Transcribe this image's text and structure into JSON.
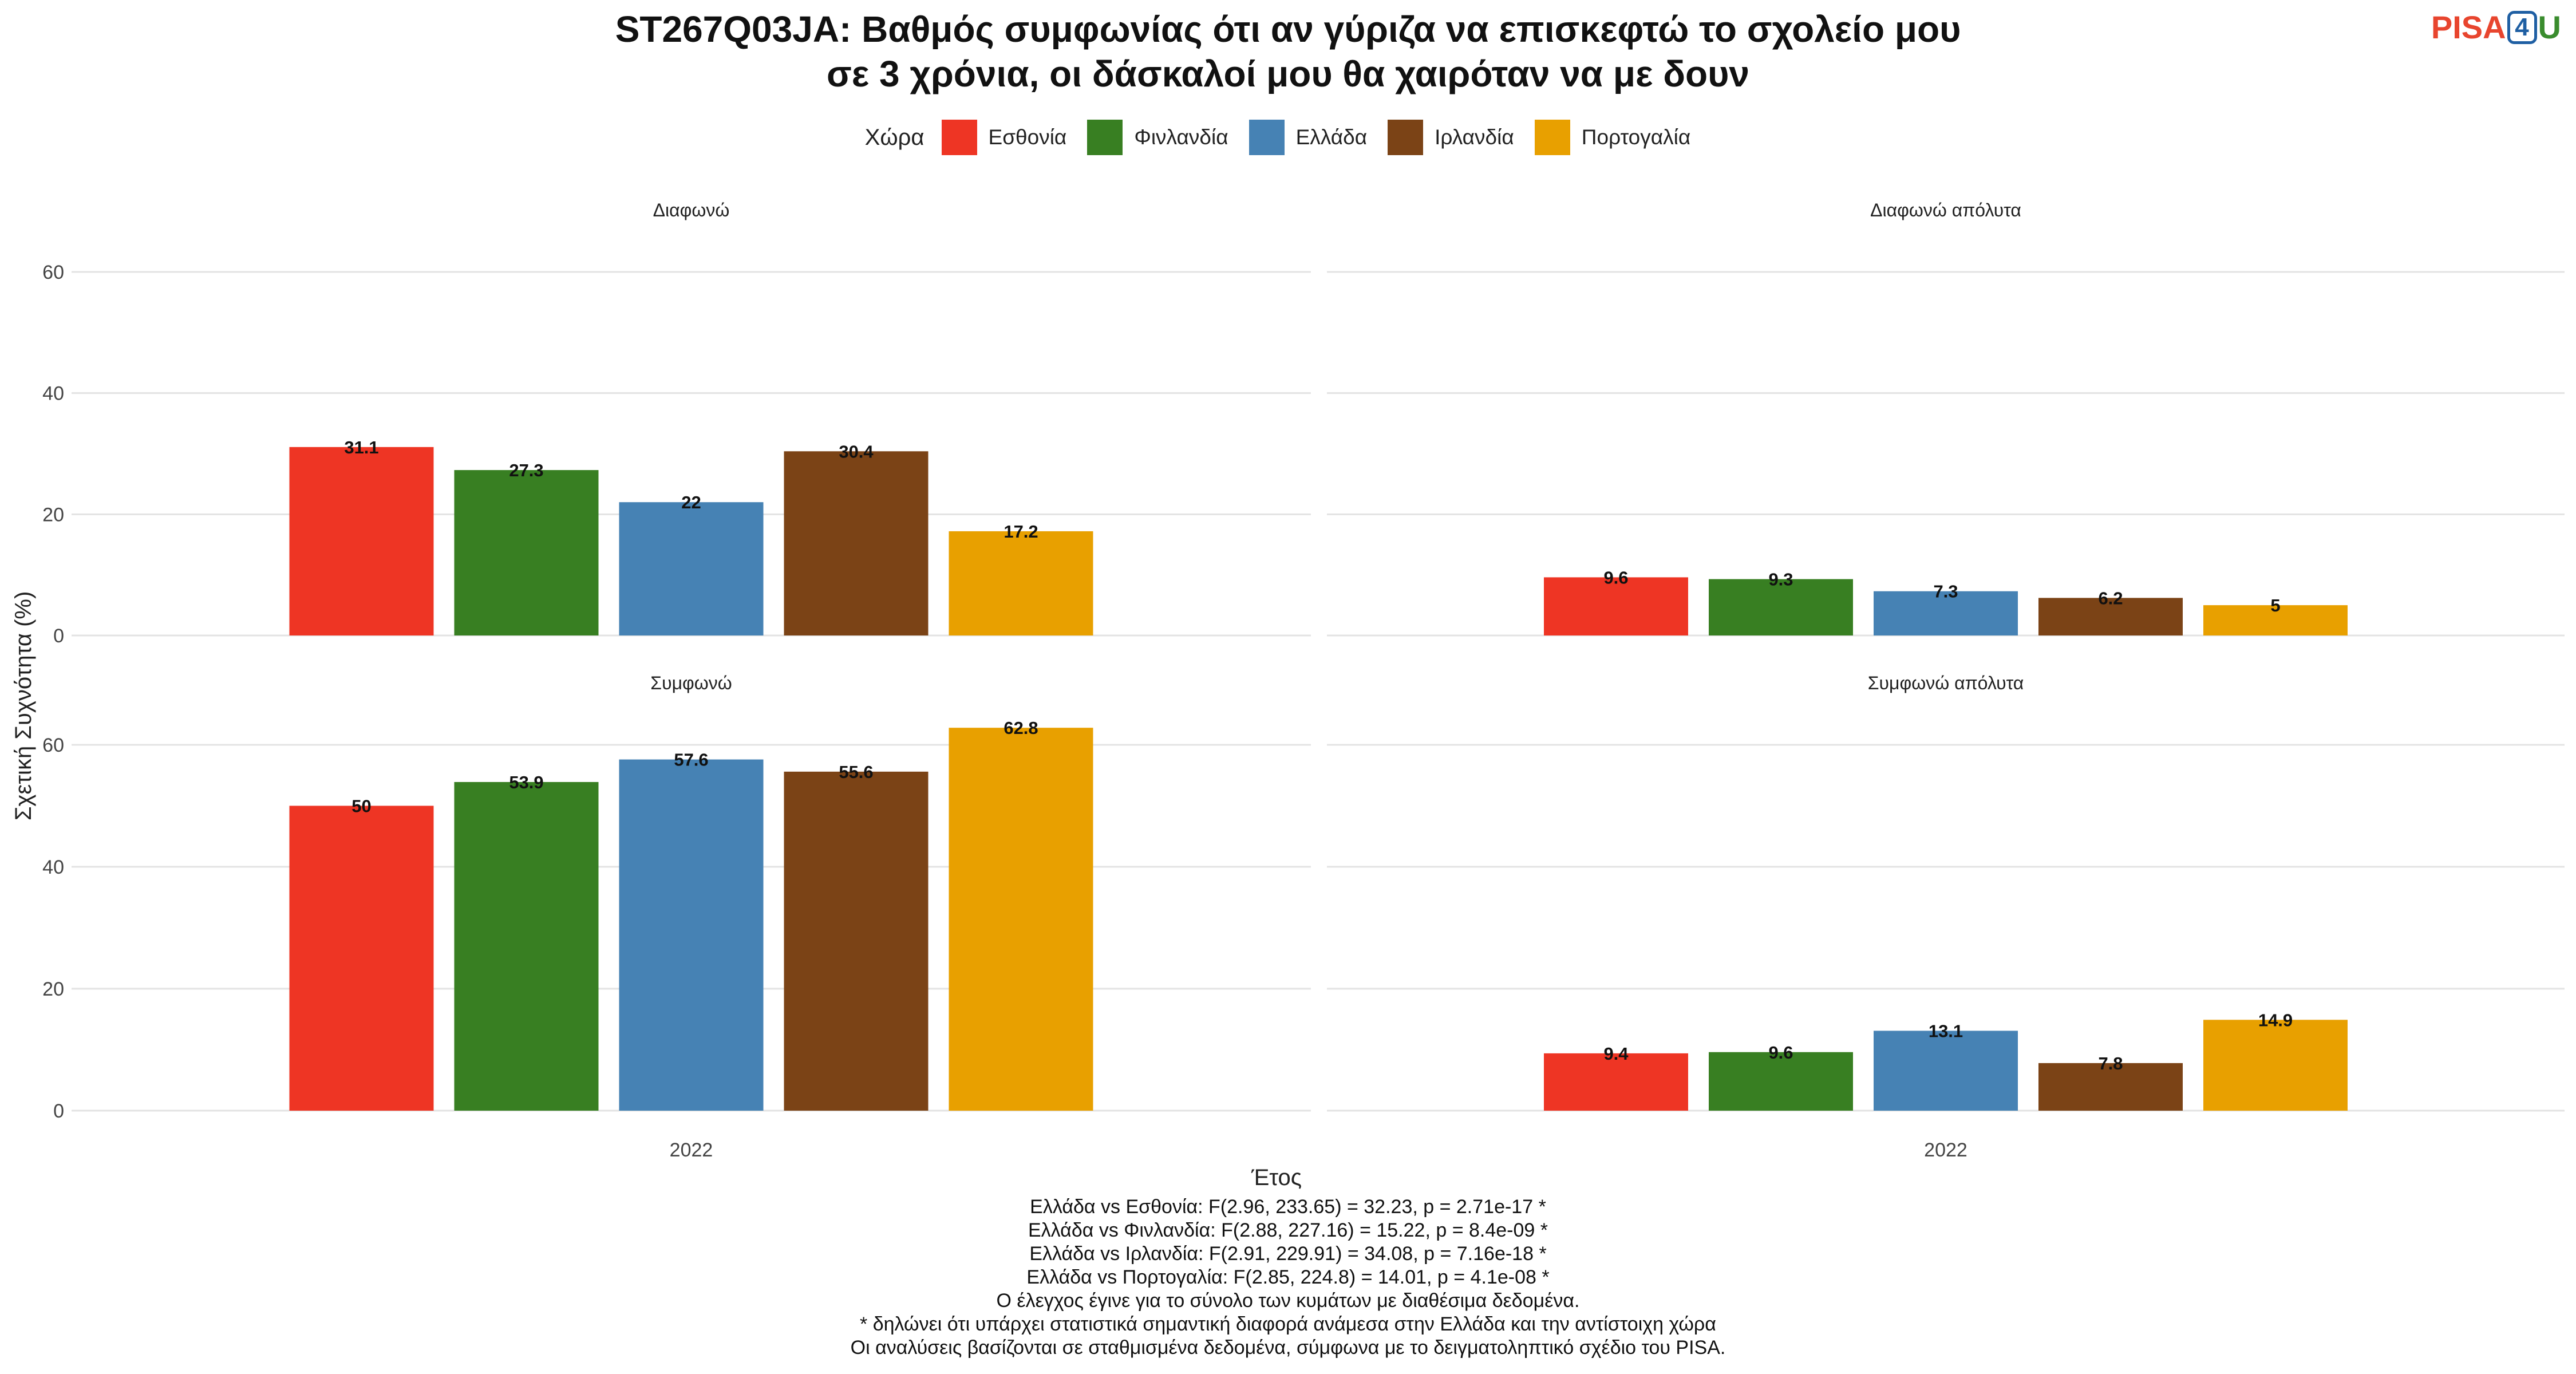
{
  "title_lines": [
    "ST267Q03JA: Βαθμός συμφωνίας ότι αν γύριζα να επισκεφτώ το σχολείο μου",
    "σε 3 χρόνια, οι δάσκαλοί μου θα χαιρόταν να με δουν"
  ],
  "logo": {
    "part1": "PISA",
    "part2": "4",
    "part3": "U"
  },
  "legend": {
    "title": "Χώρα",
    "items": [
      {
        "label": "Εσθονία",
        "color": "#EE3524"
      },
      {
        "label": "Φινλανδία",
        "color": "#387F22"
      },
      {
        "label": "Ελλάδα",
        "color": "#4682B4"
      },
      {
        "label": "Ιρλανδία",
        "color": "#7B4316"
      },
      {
        "label": "Πορτογαλία",
        "color": "#E8A000"
      }
    ]
  },
  "chart_data": {
    "type": "bar",
    "ylabel": "Σχετική Συχνότητα (%)",
    "xlabel": "Έτος",
    "ylim": [
      0,
      60
    ],
    "yticks": [
      0,
      20,
      40,
      60
    ],
    "grid": true,
    "legend_position": "top",
    "x_tick": "2022",
    "series_names": [
      "Εσθονία",
      "Φινλανδία",
      "Ελλάδα",
      "Ιρλανδία",
      "Πορτογαλία"
    ],
    "series_colors": [
      "#EE3524",
      "#387F22",
      "#4682B4",
      "#7B4316",
      "#E8A000"
    ],
    "panels": [
      {
        "title": "Διαφωνώ",
        "values": [
          31.1,
          27.3,
          22,
          30.4,
          17.2
        ],
        "labels": [
          "31.1",
          "27.3",
          "22",
          "30.4",
          "17.2"
        ]
      },
      {
        "title": "Διαφωνώ απόλυτα",
        "values": [
          9.6,
          9.3,
          7.3,
          6.2,
          5
        ],
        "labels": [
          "9.6",
          "9.3",
          "7.3",
          "6.2",
          "5"
        ]
      },
      {
        "title": "Συμφωνώ",
        "values": [
          50,
          53.9,
          57.6,
          55.6,
          62.8
        ],
        "labels": [
          "50",
          "53.9",
          "57.6",
          "55.6",
          "62.8"
        ]
      },
      {
        "title": "Συμφωνώ απόλυτα",
        "values": [
          9.4,
          9.6,
          13.1,
          7.8,
          14.9
        ],
        "labels": [
          "9.4",
          "9.6",
          "13.1",
          "7.8",
          "14.9"
        ]
      }
    ]
  },
  "footer_lines": [
    "Ελλάδα vs Εσθονία: F(2.96, 233.65) = 32.23, p = 2.71e-17 *",
    "Ελλάδα vs Φινλανδία: F(2.88, 227.16) = 15.22, p = 8.4e-09 *",
    "Ελλάδα vs Ιρλανδία: F(2.91, 229.91) = 34.08, p = 7.16e-18 *",
    "Ελλάδα vs Πορτογαλία: F(2.85, 224.8) = 14.01, p = 4.1e-08 *",
    "Ο έλεγχος έγινε για το σύνολο των κυμάτων με διαθέσιμα δεδομένα.",
    "* δηλώνει ότι υπάρχει στατιστικά σημαντική διαφορά ανάμεσα στην Ελλάδα και την αντίστοιχη χώρα",
    "Οι αναλύσεις βασίζονται σε σταθμισμένα δεδομένα, σύμφωνα με το δειγματοληπτικό σχέδιο του PISA."
  ]
}
